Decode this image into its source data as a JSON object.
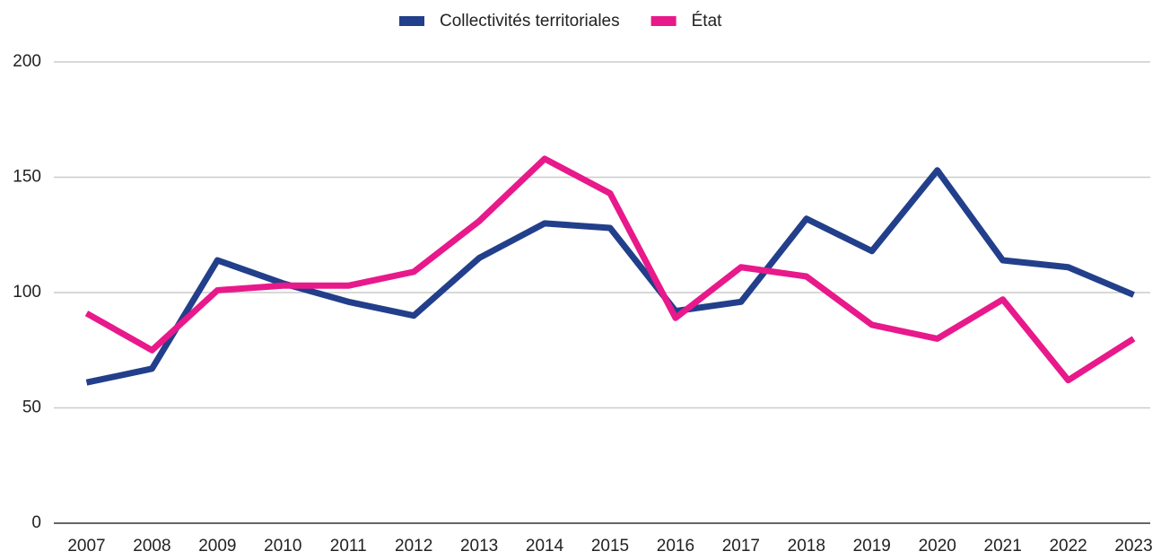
{
  "chart_data": {
    "type": "line",
    "categories": [
      "2007",
      "2008",
      "2009",
      "2010",
      "2011",
      "2012",
      "2013",
      "2014",
      "2015",
      "2016",
      "2017",
      "2018",
      "2019",
      "2020",
      "2021",
      "2022",
      "2023"
    ],
    "series": [
      {
        "name": "Collectivités territoriales",
        "color": "#223f8b",
        "values": [
          61,
          67,
          114,
          104,
          96,
          90,
          115,
          130,
          128,
          92,
          96,
          132,
          118,
          153,
          114,
          111,
          99
        ]
      },
      {
        "name": "État",
        "color": "#e8198b",
        "values": [
          91,
          75,
          101,
          103,
          103,
          109,
          131,
          158,
          143,
          89,
          111,
          107,
          86,
          80,
          97,
          62,
          80
        ]
      }
    ],
    "ylim": [
      0,
      200
    ],
    "yticks": [
      0,
      50,
      100,
      150,
      200
    ],
    "grid": true,
    "legend": "top"
  }
}
